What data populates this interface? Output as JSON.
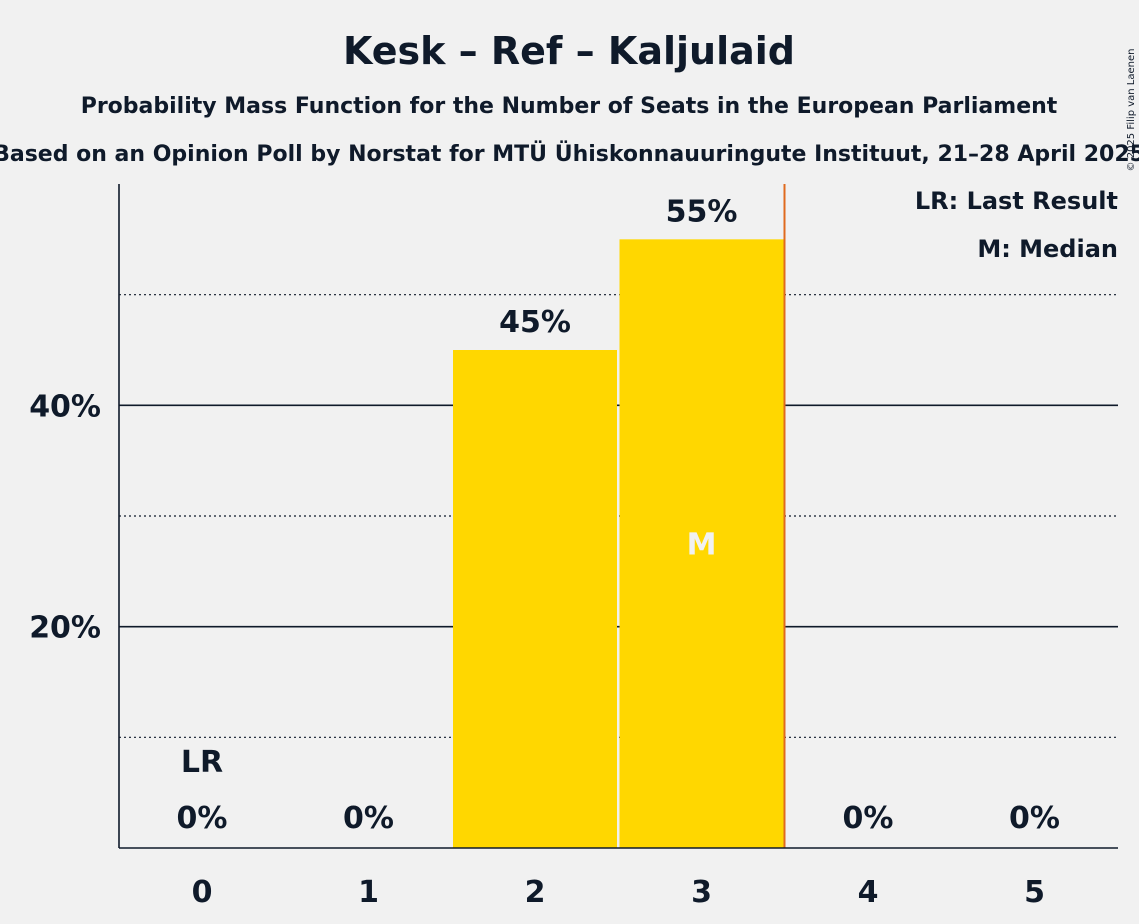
{
  "chart_data": {
    "type": "bar",
    "title": "Kesk – Ref – Kaljulaid",
    "subtitle": "Probability Mass Function for the Number of Seats in the European Parliament",
    "subtitle2": "Based on an Opinion Poll by Norstat for MTÜ Ühiskonnauuringute Instituut, 21–28 April 2025",
    "copyright": "© 2025 Filip van Laenen",
    "categories": [
      "0",
      "1",
      "2",
      "3",
      "4",
      "5"
    ],
    "values": [
      0,
      0,
      45,
      55,
      0,
      0
    ],
    "value_labels": [
      "0%",
      "0%",
      "45%",
      "55%",
      "0%",
      "0%"
    ],
    "ylim": [
      0,
      60
    ],
    "yticks": [
      20,
      40
    ],
    "ytick_labels": [
      "20%",
      "40%"
    ],
    "minor_gridlines": [
      10,
      30,
      50
    ],
    "last_result_index": 0,
    "last_result_marker": "LR",
    "median_index": 3,
    "median_marker": "M",
    "legend": [
      "LR: Last Result",
      "M: Median"
    ],
    "legend_position": "top-right",
    "colors": {
      "bar": "#ffd700",
      "text": "#0f1a2a",
      "median_text": "#f1f1f1",
      "median_line": "#e06a1e",
      "background": "#f1f1f1"
    }
  }
}
